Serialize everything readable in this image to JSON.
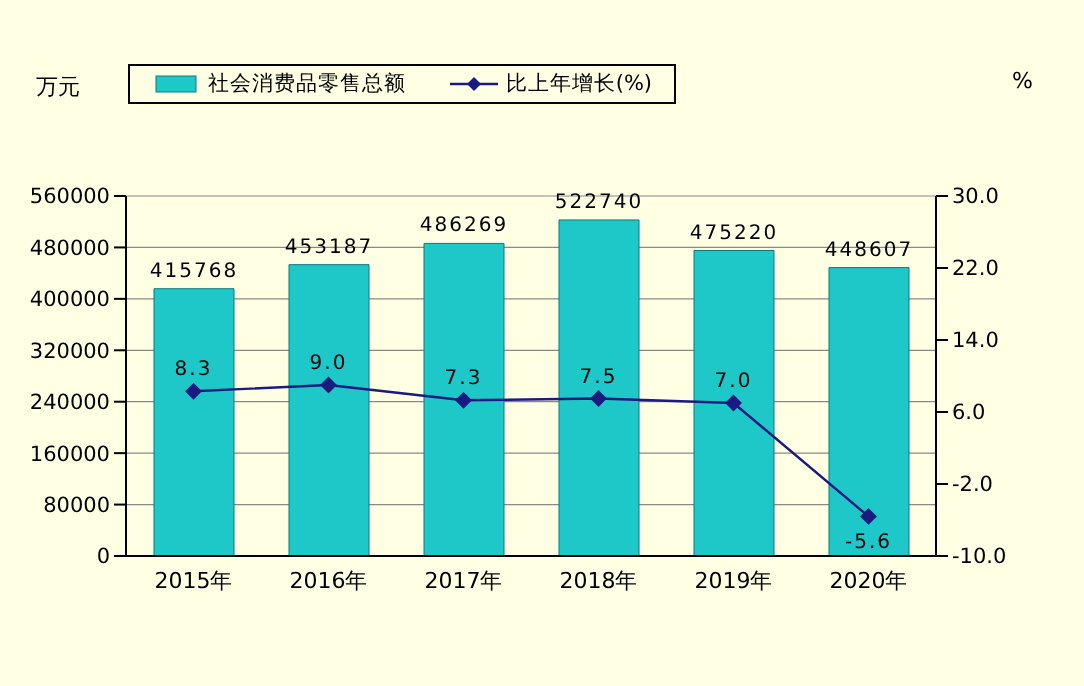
{
  "chart_data": {
    "type": "bar",
    "categories": [
      "2015年",
      "2016年",
      "2017年",
      "2018年",
      "2019年",
      "2020年"
    ],
    "ylabel": "万元",
    "y2label": "%",
    "series": [
      {
        "name": "社会消费品零售总额",
        "color": "#1ec8c8",
        "values": [
          415768,
          453187,
          486269,
          522740,
          475220,
          448607
        ],
        "value_labels": [
          "415768",
          "453187",
          "486269",
          "522740",
          "475220",
          "448607"
        ]
      },
      {
        "name": "比上年增长(%)",
        "type": "line",
        "axis": "y2",
        "color": "#1a1a80",
        "marker": "diamond",
        "values": [
          8.3,
          9.0,
          7.3,
          7.5,
          7.0,
          -5.6
        ],
        "value_labels": [
          "8.3",
          "9.0",
          "7.3",
          "7.5",
          "7.0",
          "-5.6"
        ]
      }
    ],
    "ylim": [
      0,
      560000
    ],
    "yticks": [
      0,
      80000,
      160000,
      240000,
      320000,
      400000,
      480000,
      560000
    ],
    "y2lim": [
      -10,
      30
    ],
    "y2ticks": [
      {
        "value": -10,
        "label": "-10.0"
      },
      {
        "value": -2,
        "label": "-2.0"
      },
      {
        "value": 6,
        "label": "6.0"
      },
      {
        "value": 14,
        "label": "14.0"
      },
      {
        "value": 22,
        "label": "22.0"
      },
      {
        "value": 30,
        "label": "30.0"
      }
    ],
    "grid": "y",
    "legend": "top"
  }
}
